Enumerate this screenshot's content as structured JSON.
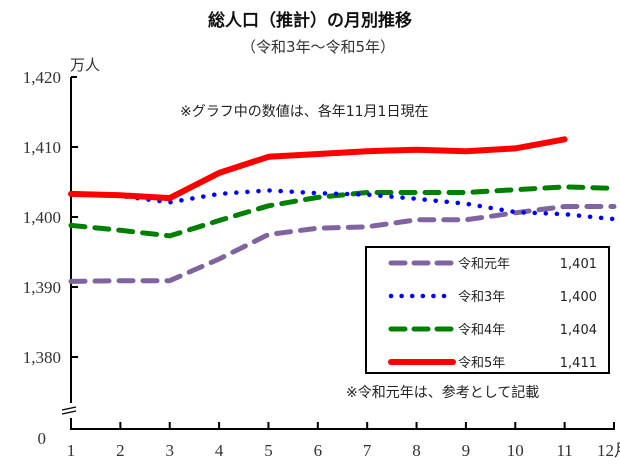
{
  "chart_data": {
    "type": "line",
    "title": "総人口（推計）の月別推移",
    "subtitle": "（令和3年～令和5年）",
    "xlabel": "",
    "x_unit": "月",
    "ylabel": "万人",
    "x": [
      1,
      2,
      3,
      4,
      5,
      6,
      7,
      8,
      9,
      10,
      11,
      12
    ],
    "x_tick_labels": [
      "1",
      "2",
      "3",
      "4",
      "5",
      "6",
      "7",
      "8",
      "9",
      "10",
      "11",
      "12月"
    ],
    "ylim": [
      1375,
      1420
    ],
    "y_ticks": [
      1380,
      1390,
      1400,
      1410,
      1420
    ],
    "y_tick_labels": [
      "1,380",
      "1,390",
      "1,400",
      "1,410",
      "1,420"
    ],
    "y_zero_label": "0",
    "axis_break": true,
    "grid": false,
    "legend_position": "bottom-right",
    "annotations": [
      "※グラフ中の数値は、各年11月1日現在",
      "※令和元年は、参考として記載"
    ],
    "series": [
      {
        "name": "令和元年",
        "label_value": "1,401",
        "color": "#8064a2",
        "style": "dashed",
        "values": [
          1390.8,
          1390.9,
          1390.9,
          1394.0,
          1397.5,
          1398.4,
          1398.6,
          1399.6,
          1399.6,
          1400.6,
          1401.5,
          1401.5
        ]
      },
      {
        "name": "令和3年",
        "label_value": "1,400",
        "color": "#0000ff",
        "style": "dotted",
        "values": [
          1403.3,
          1403.0,
          1402.1,
          1403.3,
          1403.8,
          1403.4,
          1403.2,
          1402.6,
          1401.9,
          1400.7,
          1400.4,
          1399.7
        ]
      },
      {
        "name": "令和4年",
        "label_value": "1,404",
        "color": "#008000",
        "style": "dashed",
        "values": [
          1398.8,
          1398.1,
          1397.3,
          1399.5,
          1401.6,
          1402.8,
          1403.5,
          1403.5,
          1403.5,
          1403.9,
          1404.3,
          1404.1
        ]
      },
      {
        "name": "令和5年",
        "label_value": "1,411",
        "color": "#ff0000",
        "style": "solid",
        "values": [
          1403.3,
          1403.1,
          1402.7,
          1406.3,
          1408.6,
          1409.0,
          1409.4,
          1409.6,
          1409.4,
          1409.8,
          1411.1,
          null
        ]
      }
    ]
  }
}
